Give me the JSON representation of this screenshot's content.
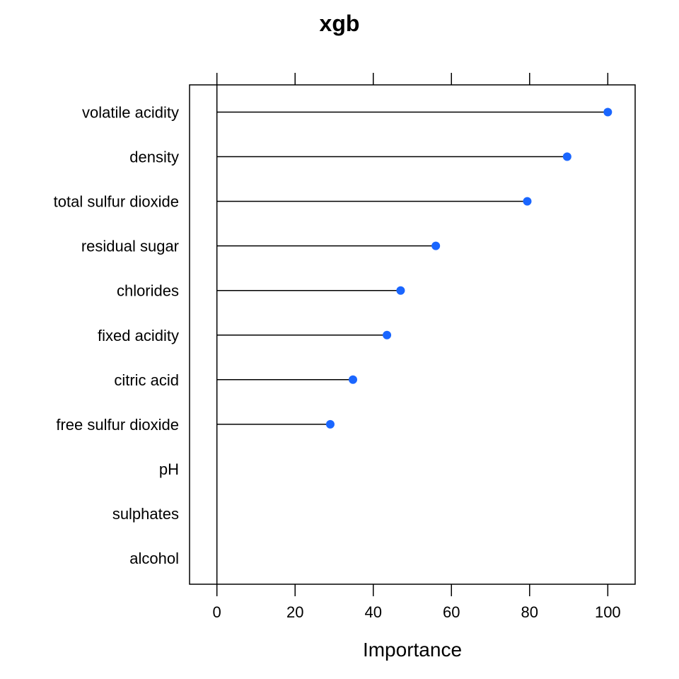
{
  "chart_data": {
    "type": "dotplot",
    "title": "xgb",
    "xlabel": "Importance",
    "ylabel": "",
    "xlim": [
      -7,
      107
    ],
    "xticks": [
      0,
      20,
      40,
      60,
      80,
      100
    ],
    "xtick_labels": [
      "0",
      "20",
      "40",
      "60",
      "80",
      "100"
    ],
    "categories": [
      "volatile acidity",
      "density",
      "total sulfur dioxide",
      "residual sugar",
      "chlorides",
      "fixed acidity",
      "citric acid",
      "free sulfur dioxide",
      "pH",
      "sulphates",
      "alcohol"
    ],
    "values": [
      100,
      89.6,
      79.4,
      56.0,
      47.0,
      43.5,
      34.8,
      29.0,
      0,
      0,
      0
    ],
    "point_color": "#1a66ff",
    "line_color": "#000000",
    "grid": false,
    "legend": "none"
  }
}
